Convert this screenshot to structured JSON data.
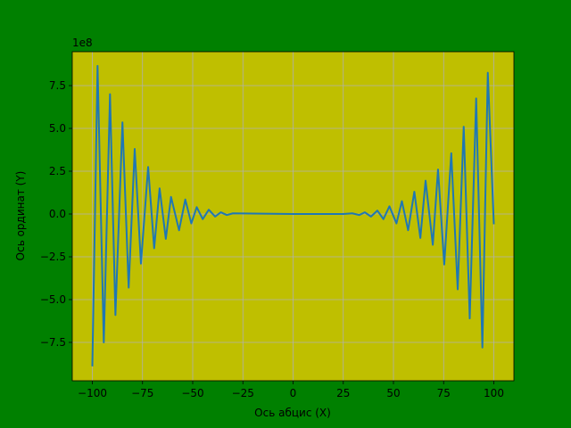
{
  "chart_data": {
    "type": "line",
    "xlabel": "Ось абцис (X)",
    "ylabel": "Ось ординат (Y)",
    "y_offset_label": "1e8",
    "background": "#008000",
    "axes_color": "#bfbf00",
    "grid": true,
    "x": [
      -100,
      -97.4,
      -94.3,
      -91.2,
      -88.5,
      -85,
      -81.9,
      -78.9,
      -75.8,
      -72.2,
      -69.2,
      -66.5,
      -63.4,
      -60.8,
      -56.8,
      -53.7,
      -50.7,
      -48,
      -45,
      -42,
      -38.8,
      -36,
      -33,
      -30,
      0,
      25,
      29.5,
      33,
      35.7,
      38.8,
      42,
      45,
      48,
      51.5,
      54.2,
      57.3,
      60.4,
      63.4,
      66,
      69.6,
      72.2,
      75.3,
      78.8,
      82,
      85,
      88,
      91.2,
      94.3,
      97,
      100
    ],
    "series": [
      {
        "color": "#1f77b4",
        "values": [
          -8.9,
          8.65,
          -7.5,
          7.0,
          -5.9,
          5.35,
          -4.3,
          3.8,
          -2.9,
          2.75,
          -2.0,
          1.5,
          -1.45,
          1.0,
          -0.95,
          0.85,
          -0.55,
          0.4,
          -0.3,
          0.25,
          -0.15,
          0.1,
          -0.06,
          0.04,
          0,
          0,
          0.04,
          -0.06,
          0.1,
          -0.15,
          0.2,
          -0.3,
          0.45,
          -0.55,
          0.75,
          -0.95,
          1.3,
          -1.4,
          1.95,
          -1.8,
          2.6,
          -2.95,
          3.55,
          -4.4,
          5.1,
          -6.1,
          6.75,
          -7.8,
          8.25,
          -0.6
        ]
      }
    ],
    "xlim": [
      -110,
      110
    ],
    "ylim": [
      -9.74,
      9.48
    ],
    "xticks": [
      {
        "value": -100,
        "label": "−100"
      },
      {
        "value": -75,
        "label": "−75"
      },
      {
        "value": -50,
        "label": "−50"
      },
      {
        "value": -25,
        "label": "−25"
      },
      0,
      25,
      50,
      75,
      100
    ],
    "yticks": [
      {
        "value": -7.5,
        "label": "−7.5"
      },
      {
        "value": -5,
        "label": "−5.0"
      },
      {
        "value": -2.5,
        "label": "−2.5"
      },
      {
        "value": 0,
        "label": "0.0"
      },
      2.5,
      {
        "value": 5,
        "label": "5.0"
      },
      7.5
    ]
  }
}
